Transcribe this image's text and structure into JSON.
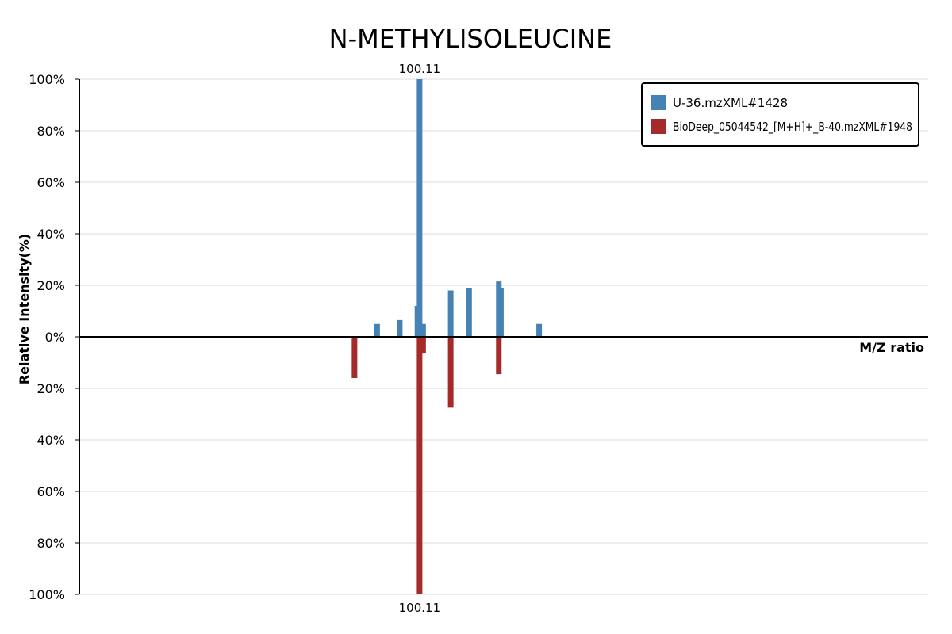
{
  "chart_data": {
    "type": "bar",
    "title": "N-METHYLISOLEUCINE",
    "xlabel": "M/Z ratio",
    "ylabel": "Relative Intensity(%)",
    "ylim": [
      -100,
      100
    ],
    "xlim": [
      42,
      162
    ],
    "yticks": [
      {
        "value": 100,
        "label": "100%"
      },
      {
        "value": 80,
        "label": "80%"
      },
      {
        "value": 60,
        "label": "60%"
      },
      {
        "value": 40,
        "label": "40%"
      },
      {
        "value": 20,
        "label": "20%"
      },
      {
        "value": 0,
        "label": "0%"
      },
      {
        "value": -20,
        "label": "20%"
      },
      {
        "value": -40,
        "label": "40%"
      },
      {
        "value": -60,
        "label": "60%"
      },
      {
        "value": -80,
        "label": "80%"
      },
      {
        "value": -100,
        "label": "100%"
      }
    ],
    "grid": true,
    "legend_position": "top-right",
    "series": [
      {
        "name": "U-36.mzXML#1428",
        "color": "#4682b4",
        "direction": "up",
        "points": [
          {
            "mz": 84.1,
            "intensity": 5
          },
          {
            "mz": 87.3,
            "intensity": 6.5
          },
          {
            "mz": 89.8,
            "intensity": 12
          },
          {
            "mz": 90.1,
            "intensity": 100
          },
          {
            "mz": 90.6,
            "intensity": 5
          },
          {
            "mz": 94.5,
            "intensity": 18
          },
          {
            "mz": 97.1,
            "intensity": 19
          },
          {
            "mz": 101.3,
            "intensity": 21.5
          },
          {
            "mz": 101.6,
            "intensity": 19
          },
          {
            "mz": 107.0,
            "intensity": 5
          }
        ]
      },
      {
        "name": "BioDeep_05044542_[M+H]+_B-40.mzXML#1948",
        "color": "#a52a2a",
        "direction": "down",
        "points": [
          {
            "mz": 80.9,
            "intensity": 16
          },
          {
            "mz": 90.1,
            "intensity": 100
          },
          {
            "mz": 90.6,
            "intensity": 6.5
          },
          {
            "mz": 94.5,
            "intensity": 27.5
          },
          {
            "mz": 101.3,
            "intensity": 14.5
          }
        ]
      }
    ],
    "annotations": [
      {
        "mz": 90.1,
        "series": 0,
        "label": "100.11"
      },
      {
        "mz": 90.1,
        "series": 1,
        "label": "100.11"
      }
    ]
  }
}
